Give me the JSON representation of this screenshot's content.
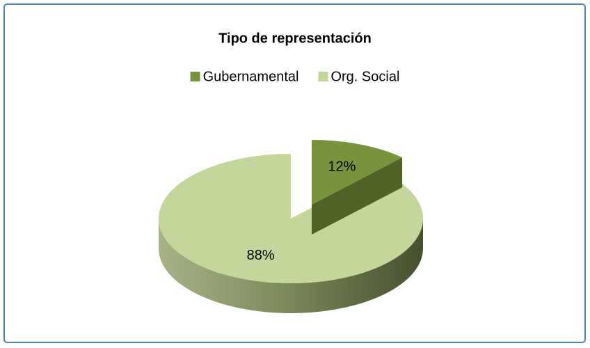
{
  "chart_data": {
    "type": "pie",
    "title": "Tipo de representación",
    "categories": [
      "Gubernamental",
      "Org. Social"
    ],
    "values": [
      12,
      88
    ],
    "value_labels": [
      "12%",
      "88%"
    ],
    "colors": [
      "#77933c",
      "#c3d69b"
    ],
    "legend": "top"
  }
}
